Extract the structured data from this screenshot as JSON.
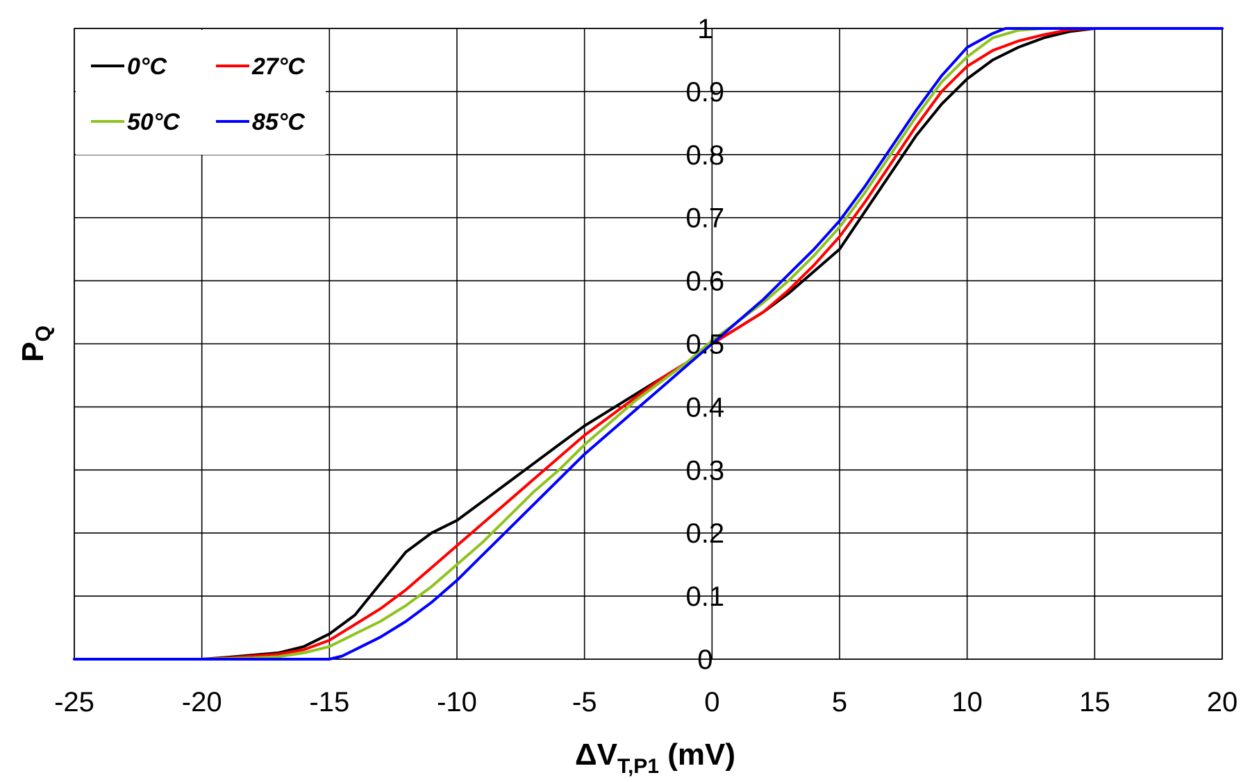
{
  "chart_data": {
    "type": "line",
    "title": "",
    "xlabel": {
      "main": "ΔV",
      "subscript": "T,P1",
      "suffix": " (mV)"
    },
    "ylabel": {
      "main": "P",
      "subscript": "Q"
    },
    "xlim": [
      -25,
      20
    ],
    "ylim": [
      0,
      1
    ],
    "xticks": [
      -25,
      -20,
      -15,
      -10,
      -5,
      0,
      5,
      10,
      15,
      20
    ],
    "yticks": [
      0,
      0.1,
      0.2,
      0.3,
      0.4,
      0.5,
      0.6,
      0.7,
      0.8,
      0.9,
      1
    ],
    "grid": true,
    "legend_position": "top-left",
    "series": [
      {
        "name": "0°C",
        "color": "#000000",
        "points": [
          [
            -25,
            0
          ],
          [
            -20,
            0
          ],
          [
            -19,
            0.003
          ],
          [
            -17,
            0.01
          ],
          [
            -16,
            0.02
          ],
          [
            -15,
            0.04
          ],
          [
            -14,
            0.07
          ],
          [
            -13,
            0.12
          ],
          [
            -12,
            0.17
          ],
          [
            -11,
            0.2
          ],
          [
            -10,
            0.22
          ],
          [
            -9,
            0.25
          ],
          [
            -8,
            0.28
          ],
          [
            -7,
            0.31
          ],
          [
            -6,
            0.34
          ],
          [
            -5,
            0.37
          ],
          [
            -4,
            0.395
          ],
          [
            -3,
            0.42
          ],
          [
            -2,
            0.445
          ],
          [
            -1,
            0.47
          ],
          [
            0,
            0.5
          ],
          [
            1,
            0.525
          ],
          [
            2,
            0.55
          ],
          [
            3,
            0.58
          ],
          [
            4,
            0.615
          ],
          [
            5,
            0.65
          ],
          [
            6,
            0.71
          ],
          [
            7,
            0.77
          ],
          [
            8,
            0.83
          ],
          [
            9,
            0.88
          ],
          [
            10,
            0.92
          ],
          [
            11,
            0.95
          ],
          [
            12,
            0.97
          ],
          [
            13,
            0.985
          ],
          [
            14,
            0.995
          ],
          [
            15,
            1
          ],
          [
            20,
            1
          ]
        ]
      },
      {
        "name": "27°C",
        "color": "#ff0000",
        "points": [
          [
            -25,
            0
          ],
          [
            -20,
            0
          ],
          [
            -19,
            0.002
          ],
          [
            -17,
            0.008
          ],
          [
            -16,
            0.015
          ],
          [
            -15,
            0.03
          ],
          [
            -14,
            0.055
          ],
          [
            -13,
            0.08
          ],
          [
            -12,
            0.11
          ],
          [
            -11,
            0.145
          ],
          [
            -10,
            0.18
          ],
          [
            -9,
            0.215
          ],
          [
            -8,
            0.25
          ],
          [
            -7,
            0.285
          ],
          [
            -6,
            0.32
          ],
          [
            -5,
            0.355
          ],
          [
            -4,
            0.385
          ],
          [
            -3,
            0.415
          ],
          [
            -2,
            0.445
          ],
          [
            -1,
            0.47
          ],
          [
            0,
            0.5
          ],
          [
            1,
            0.525
          ],
          [
            2,
            0.55
          ],
          [
            3,
            0.585
          ],
          [
            4,
            0.625
          ],
          [
            5,
            0.67
          ],
          [
            6,
            0.725
          ],
          [
            7,
            0.785
          ],
          [
            8,
            0.845
          ],
          [
            9,
            0.9
          ],
          [
            10,
            0.94
          ],
          [
            11,
            0.965
          ],
          [
            12,
            0.98
          ],
          [
            13,
            0.99
          ],
          [
            14,
            0.998
          ],
          [
            15,
            1
          ],
          [
            20,
            1
          ]
        ]
      },
      {
        "name": "50°C",
        "color": "#8ec31f",
        "points": [
          [
            -25,
            0
          ],
          [
            -20,
            0
          ],
          [
            -18,
            0.002
          ],
          [
            -17,
            0.004
          ],
          [
            -16,
            0.01
          ],
          [
            -15,
            0.02
          ],
          [
            -14,
            0.04
          ],
          [
            -13,
            0.06
          ],
          [
            -12,
            0.085
          ],
          [
            -11,
            0.115
          ],
          [
            -10,
            0.15
          ],
          [
            -9,
            0.185
          ],
          [
            -8,
            0.225
          ],
          [
            -7,
            0.265
          ],
          [
            -6,
            0.3
          ],
          [
            -5,
            0.34
          ],
          [
            -4,
            0.375
          ],
          [
            -3,
            0.41
          ],
          [
            -2,
            0.44
          ],
          [
            -1,
            0.47
          ],
          [
            0,
            0.505
          ],
          [
            1,
            0.535
          ],
          [
            2,
            0.565
          ],
          [
            3,
            0.6
          ],
          [
            4,
            0.64
          ],
          [
            5,
            0.685
          ],
          [
            6,
            0.74
          ],
          [
            7,
            0.8
          ],
          [
            8,
            0.86
          ],
          [
            9,
            0.915
          ],
          [
            10,
            0.955
          ],
          [
            11,
            0.985
          ],
          [
            12,
            0.997
          ],
          [
            13,
            1
          ],
          [
            20,
            1
          ]
        ]
      },
      {
        "name": "85°C",
        "color": "#0000ff",
        "points": [
          [
            -25,
            0
          ],
          [
            -15,
            0
          ],
          [
            -14.5,
            0.005
          ],
          [
            -14,
            0.015
          ],
          [
            -13,
            0.035
          ],
          [
            -12,
            0.06
          ],
          [
            -11,
            0.09
          ],
          [
            -10,
            0.125
          ],
          [
            -9,
            0.165
          ],
          [
            -8,
            0.205
          ],
          [
            -7,
            0.245
          ],
          [
            -6,
            0.285
          ],
          [
            -5,
            0.325
          ],
          [
            -4,
            0.36
          ],
          [
            -3,
            0.395
          ],
          [
            -2,
            0.43
          ],
          [
            -1,
            0.465
          ],
          [
            0,
            0.5
          ],
          [
            1,
            0.535
          ],
          [
            2,
            0.57
          ],
          [
            3,
            0.61
          ],
          [
            4,
            0.65
          ],
          [
            5,
            0.695
          ],
          [
            6,
            0.75
          ],
          [
            7,
            0.81
          ],
          [
            8,
            0.87
          ],
          [
            9,
            0.925
          ],
          [
            10,
            0.97
          ],
          [
            11,
            0.992
          ],
          [
            11.5,
            1
          ],
          [
            20,
            1
          ]
        ]
      }
    ]
  }
}
